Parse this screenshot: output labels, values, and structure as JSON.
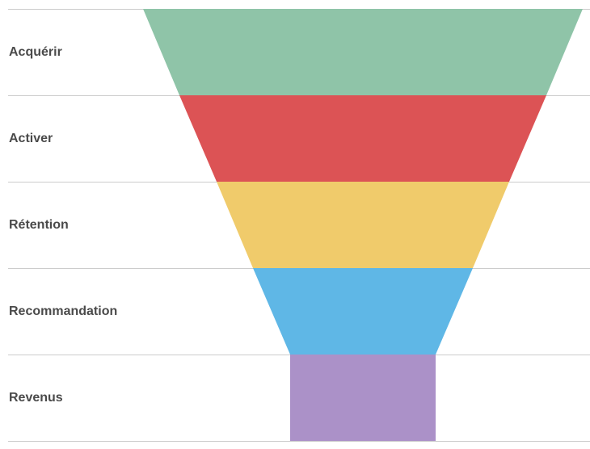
{
  "stages": [
    {
      "label": "Acquérir",
      "color": "#8fc4a8"
    },
    {
      "label": "Activer",
      "color": "#dc5355"
    },
    {
      "label": "Rétention",
      "color": "#f0cb6b"
    },
    {
      "label": "Recommandation",
      "color": "#5fb7e6"
    },
    {
      "label": "Revenus",
      "color": "#ab91c8"
    }
  ],
  "divider_color": "#cccccc",
  "label_color": "#4a4a4a"
}
